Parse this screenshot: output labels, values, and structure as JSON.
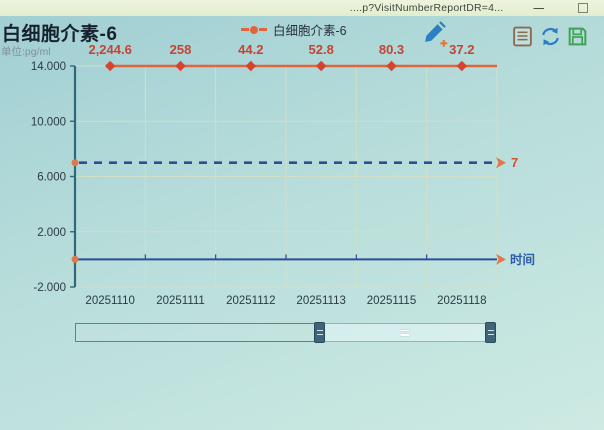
{
  "window_bar": {
    "url_text": "....p?VisitNumberReportDR=4...",
    "minimize_label": "—"
  },
  "header": {
    "title": "白细胞介素-6",
    "unit_label": "单位:pg/ml",
    "legend": {
      "label": "白细胞介素-6",
      "color": "#e0653e"
    },
    "tool_icons": [
      "edit-icon",
      "report-icon",
      "refresh-icon",
      "save-icon"
    ]
  },
  "chart_data": {
    "type": "line",
    "title": "白细胞介素-6",
    "unit": "pg/ml",
    "categories": [
      "20251110",
      "20251111",
      "20251112",
      "20251113",
      "20251115",
      "20251118"
    ],
    "series": [
      {
        "name": "白细胞介素-6",
        "values": [
          2244.6,
          258,
          44.2,
          52.8,
          80.3,
          37.2
        ],
        "labels": [
          "2,244.6",
          "258",
          "44.2",
          "52.8",
          "80.3",
          "37.2"
        ],
        "color": "#e0653e",
        "marker": "diamond",
        "marker_color": "#d64430",
        "label_color": "#c64333",
        "note": "values exceed axis max and are clamped at top"
      }
    ],
    "ylim": [
      -2,
      14
    ],
    "y_ticks": [
      {
        "label": "14.000",
        "value": 14
      },
      {
        "label": "10.000",
        "value": 10
      },
      {
        "label": "6.000",
        "value": 6
      },
      {
        "label": "2.000",
        "value": 2
      },
      {
        "label": "-2.000",
        "value": -2
      }
    ],
    "reference_line": {
      "value": 7,
      "label": "7",
      "style": "dashed",
      "color": "#2c4d97",
      "endpoint_color": "#e0784a",
      "label_color": "#d4532f"
    },
    "x_axis": {
      "name": "时间",
      "value": 0,
      "color": "#2c4d97",
      "name_color": "#2d5cab"
    },
    "axis_line_color": "#2f6879",
    "grid": true,
    "gridline_color": "#cfe0c6",
    "legend_position": "top"
  },
  "scrollbar": {
    "selected_range": "right portion",
    "handle_color": "#3e6579"
  }
}
